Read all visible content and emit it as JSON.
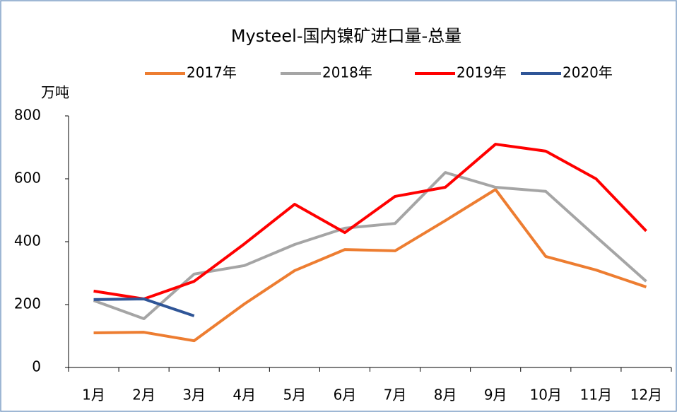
{
  "chart_data": {
    "type": "line",
    "title": "Mysteel-国内镍矿进口量-总量",
    "y_label": "万吨",
    "categories": [
      "1月",
      "2月",
      "3月",
      "4月",
      "5月",
      "6月",
      "7月",
      "8月",
      "9月",
      "10月",
      "11月",
      "12月"
    ],
    "series": [
      {
        "name": "2017年",
        "color": "#ED7D31",
        "values": [
          110,
          112,
          85,
          202,
          308,
          375,
          371,
          467,
          566,
          353,
          310,
          256
        ]
      },
      {
        "name": "2018年",
        "color": "#A5A5A5",
        "values": [
          213,
          155,
          297,
          324,
          391,
          443,
          458,
          620,
          573,
          560,
          416,
          274
        ]
      },
      {
        "name": "2019年",
        "color": "#FF0000",
        "values": [
          243,
          218,
          274,
          393,
          519,
          429,
          544,
          573,
          710,
          688,
          600,
          434
        ]
      },
      {
        "name": "2020年",
        "color": "#2F5597",
        "values": [
          216,
          218,
          164,
          null,
          null,
          null,
          null,
          null,
          null,
          null,
          null,
          null
        ]
      }
    ],
    "ylim": [
      0,
      800
    ],
    "yticks": [
      0,
      200,
      400,
      600,
      800
    ],
    "grid": false
  }
}
